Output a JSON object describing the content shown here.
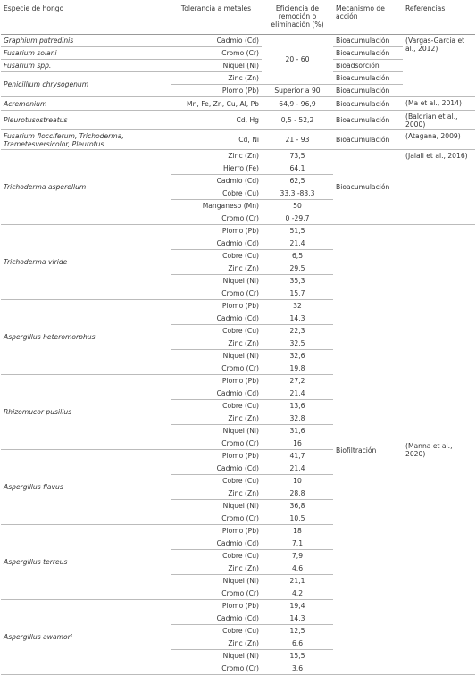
{
  "table": {
    "header": [
      "Especie de hongo",
      "Tolerancia a metales",
      "Eficiencia de remoción o eliminación (%)",
      "Mecanismo de acción",
      "Referencias"
    ],
    "rows": [
      [
        "Graphium putredinis",
        "Cadmio (Cd)",
        "20 - 60",
        "Bioacumulación",
        "(Vargas-García et al., 2012)"
      ],
      [
        "Fusarium solani",
        "Cromo (Cr)",
        "Bioacumulación"
      ],
      [
        "Fusarium spp.",
        "Níquel (Ni)",
        "Bioadsorción"
      ],
      [
        "Penicillium chrysogenum",
        "Zinc (Zn)",
        "Bioacumulación"
      ],
      [
        "Plomo (Pb)",
        "Superior a 90",
        "Bioacumulación"
      ],
      [
        "Acremonium",
        "Mn, Fe, Zn, Cu, Al, Pb",
        "64,9 - 96,9",
        "Bioacumulación",
        "(Ma et al., 2014)"
      ],
      [
        "Pleurotusostreatus",
        "Cd, Hg",
        "0,5 - 52,2",
        "Bioacumulación",
        "(Baldrian et al., 2000)"
      ],
      [
        "Fusarium flocciferum, Trichoderma, Trametesversicolor, Pleurotus",
        "Cd, Ni",
        "21 - 93",
        "Bioacumulación",
        "(Atagana, 2009)"
      ],
      [
        "Trichoderma asperellum",
        "Zinc (Zn)",
        "73,5",
        "Bioacumulación",
        "(Jalali et al., 2016)"
      ],
      [
        "Hierro (Fe)",
        "64,1"
      ],
      [
        "Cadmio (Cd)",
        "62,5"
      ],
      [
        "Cobre (Cu)",
        "33,3 -83,3"
      ],
      [
        "Manganeso (Mn)",
        "50"
      ],
      [
        "Cromo (Cr)",
        "0 -29,7"
      ],
      [
        "Trichoderma viride",
        "Plomo (Pb)",
        "51,5",
        "Biofiltración",
        "(Manna et al., 2020)"
      ],
      [
        "Cadmio (Cd)",
        "21,4"
      ],
      [
        "Cobre (Cu)",
        "6,5"
      ],
      [
        "Zinc (Zn)",
        "29,5"
      ],
      [
        "Níquel (Ni)",
        "35,3"
      ],
      [
        "Cromo (Cr)",
        "15,7"
      ],
      [
        "Aspergillus heteromorphus",
        "Plomo (Pb)",
        "32"
      ],
      [
        "Cadmio (Cd)",
        "14,3"
      ],
      [
        "Cobre (Cu)",
        "22,3"
      ],
      [
        "Zinc (Zn)",
        "32,5"
      ],
      [
        "Níquel (Ni)",
        "32,6"
      ],
      [
        "Cromo (Cr)",
        "19,8"
      ],
      [
        "Rhizomucor pusillus",
        "Plomo (Pb)",
        "27,2"
      ],
      [
        "Cadmio (Cd)",
        "21,4"
      ],
      [
        "Cobre (Cu)",
        "13,6"
      ],
      [
        "Zinc (Zn)",
        "32,8"
      ],
      [
        "Níquel (Ni)",
        "31,6"
      ],
      [
        "Cromo (Cr)",
        "16"
      ],
      [
        "Aspergillus flavus",
        "Plomo (Pb)",
        "41,7"
      ],
      [
        "Cadmio (Cd)",
        "21,4"
      ],
      [
        "Cobre (Cu)",
        "10"
      ],
      [
        "Zinc (Zn)",
        "28,8"
      ],
      [
        "Níquel (Ni)",
        "36,8"
      ],
      [
        "Cromo (Cr)",
        "10,5"
      ],
      [
        "Aspergillus terreus",
        "Plomo (Pb)",
        "18"
      ],
      [
        "Cadmio (Cd)",
        "7,1"
      ],
      [
        "Cobre (Cu)",
        "7,9"
      ],
      [
        "Zinc (Zn)",
        "4,6"
      ],
      [
        "Níquel (Ni)",
        "21,1"
      ],
      [
        "Cromo (Cr)",
        "4,2"
      ],
      [
        "Aspergillus awamori",
        "Plomo (Pb)",
        "19,4"
      ],
      [
        "Cadmio (Cd)",
        "14,3"
      ],
      [
        "Cobre (Cu)",
        "12,5"
      ],
      [
        "Zinc (Zn)",
        "6,6"
      ],
      [
        "Níquel (Ni)",
        "15,5"
      ],
      [
        "Cromo (Cr)",
        "3,6"
      ]
    ]
  }
}
